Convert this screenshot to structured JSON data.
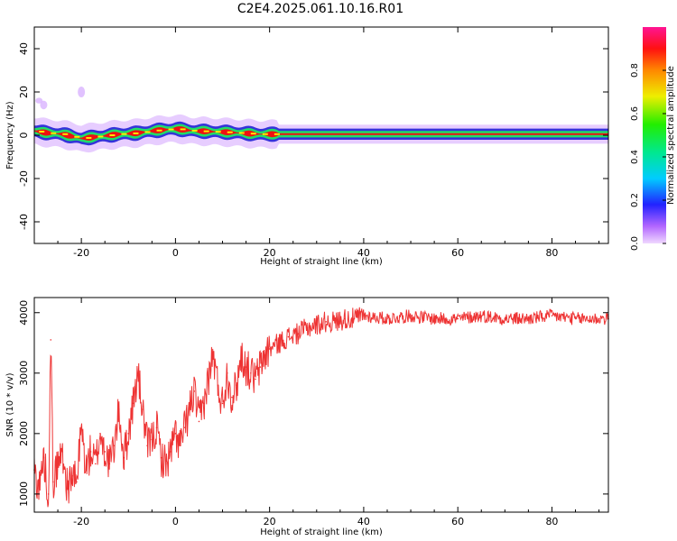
{
  "title": "C2E4.2025.061.10.16.R01",
  "chart_data": [
    {
      "type": "heatmap",
      "xlabel": "Height of straight line (km)",
      "ylabel": "Frequency (Hz)",
      "xlim": [
        -30,
        92
      ],
      "ylim": [
        -50,
        50
      ],
      "xticks": [
        -20,
        0,
        20,
        40,
        60,
        80
      ],
      "yticks": [
        -40,
        -20,
        0,
        20,
        40
      ],
      "colorbar": {
        "label": "Normalized spectral amplitude",
        "range": [
          0,
          1
        ],
        "ticks": [
          0.0,
          0.2,
          0.4,
          0.6,
          0.8
        ],
        "tick_labels": [
          "0.0",
          "0.2",
          "0.4",
          "0.6",
          "0.8"
        ]
      },
      "ridge": {
        "x": [
          -30,
          -27,
          -24,
          -20,
          -16,
          -12,
          -8,
          -5,
          0,
          4,
          10,
          14,
          18,
          22,
          30,
          40,
          60,
          80,
          92
        ],
        "freq": [
          2.0,
          1.0,
          0.5,
          -1.5,
          -0.5,
          0.5,
          1.0,
          2.0,
          3.0,
          2.0,
          1.5,
          1.0,
          0.5,
          0.5,
          0.5,
          0.5,
          0.5,
          0.5,
          0.5
        ]
      }
    },
    {
      "type": "line",
      "xlabel": "Height of straight line (km)",
      "ylabel": "SNR (10 * v/v)",
      "xlim": [
        -30,
        92
      ],
      "ylim": [
        700,
        4250
      ],
      "xticks": [
        -20,
        0,
        20,
        40,
        60,
        80
      ],
      "yticks": [
        1000,
        2000,
        3000,
        4000
      ],
      "color": "#ee3333",
      "series": [
        {
          "name": "SNR",
          "x": [
            -30,
            -29,
            -28,
            -27,
            -26.5,
            -26,
            -25,
            -24,
            -23,
            -22,
            -21,
            -20,
            -19,
            -18,
            -17,
            -16,
            -15,
            -14,
            -13,
            -12,
            -11,
            -10,
            -9,
            -8,
            -7,
            -6,
            -5,
            -4,
            -3,
            -2,
            -1,
            0,
            1,
            2,
            3,
            4,
            5,
            6,
            7,
            8,
            9,
            10,
            11,
            12,
            13,
            14,
            15,
            16,
            17,
            18,
            19,
            20,
            22,
            24,
            26,
            28,
            30,
            32,
            34,
            36,
            38,
            40,
            45,
            50,
            55,
            60,
            65,
            70,
            75,
            80,
            85,
            90,
            92
          ],
          "values": [
            1400,
            1100,
            1600,
            1000,
            3550,
            1200,
            1500,
            1700,
            1100,
            1300,
            1200,
            2100,
            1400,
            1700,
            1500,
            2000,
            1700,
            1500,
            1800,
            2400,
            1600,
            2000,
            2500,
            3000,
            2400,
            1800,
            1900,
            2100,
            1600,
            1500,
            1700,
            2000,
            1800,
            2100,
            2400,
            2700,
            2200,
            2500,
            2900,
            3300,
            2800,
            2500,
            3000,
            2600,
            2800,
            3300,
            3100,
            3000,
            2900,
            3100,
            3300,
            3400,
            3500,
            3600,
            3650,
            3750,
            3800,
            3850,
            3850,
            3900,
            3900,
            3950,
            3900,
            3950,
            3900,
            3900,
            3950,
            3900,
            3900,
            3950,
            3900,
            3900,
            3900
          ]
        }
      ]
    }
  ]
}
